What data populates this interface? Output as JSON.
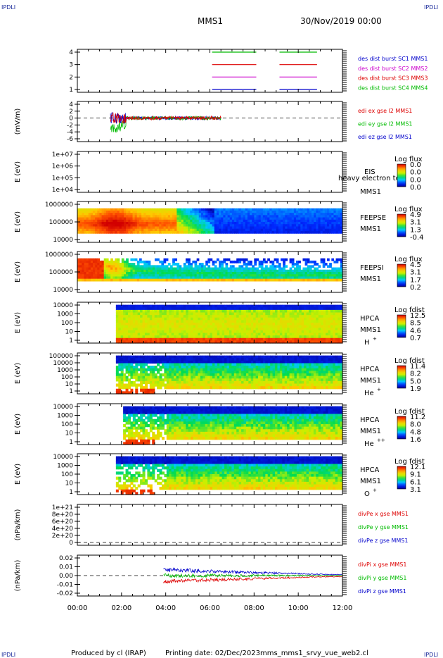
{
  "corner_label": "IPDLI",
  "header": {
    "spacecraft": "MMS1",
    "date": "30/Nov/2019 00:00"
  },
  "footer": {
    "produced_by": "Produced by cl (IRAP)",
    "printing_date": "Printing date: 02/Dec/2023",
    "filename": "mms_mms1_srvy_vue_web2.cl"
  },
  "x_axis": {
    "ticks": [
      "00:00",
      "02:00",
      "04:00",
      "06:00",
      "08:00",
      "10:00",
      "12:00"
    ],
    "range_hours": [
      0,
      12
    ]
  },
  "panels": [
    {
      "id": "burst",
      "yticks": [
        "4",
        "3",
        "2",
        "1"
      ],
      "legend": [
        {
          "text": "des dist burst SC1 MMS1",
          "color": "#0000cc"
        },
        {
          "text": "des dist burst SC2 MMS2",
          "color": "#cc00cc"
        },
        {
          "text": "des dist burst SC3 MMS3",
          "color": "#dd0000"
        },
        {
          "text": "des dist burst SC4 MMS4",
          "color": "#00bb00"
        }
      ]
    },
    {
      "id": "edi",
      "ylabel": "(mV/m)",
      "yticks": [
        "4",
        "2",
        "0",
        "-2",
        "-4",
        "-6"
      ],
      "legend": [
        {
          "text": "edi ex gse l2 MMS1",
          "color": "#dd0000"
        },
        {
          "text": "edi ey gse l2 MMS1",
          "color": "#00bb00"
        },
        {
          "text": "edi ez gse l2 MMS1",
          "color": "#0000cc"
        }
      ]
    },
    {
      "id": "eis",
      "ylabel": "E (eV)",
      "yticks": [
        "1e+07",
        "1e+06",
        "1e+05",
        "1e+04"
      ],
      "label1": "EIS",
      "label2": "MMS1",
      "overlay": "heavy electron to",
      "cbar_title": "Log flux",
      "cbar_ticks": [
        "0.0",
        "0.0",
        "0.0",
        "0.0"
      ]
    },
    {
      "id": "feepse",
      "ylabel": "E (eV)",
      "yticks": [
        "1000000",
        "100000",
        "10000"
      ],
      "label1": "FEEPSE",
      "label2": "MMS1",
      "cbar_title": "Log flux",
      "cbar_ticks": [
        "4.9",
        "3.1",
        "1.3",
        "-0.4"
      ]
    },
    {
      "id": "feepsi",
      "ylabel": "E (eV)",
      "yticks": [
        "1000000",
        "100000",
        "10000"
      ],
      "label1": "FEEPSI",
      "label2": "MMS1",
      "cbar_title": "Log flux",
      "cbar_ticks": [
        "4.5",
        "3.1",
        "1.7",
        "0.2"
      ]
    },
    {
      "id": "hpca_h",
      "ylabel": "E (eV)",
      "yticks": [
        "10000",
        "1000",
        "100",
        "10",
        "1"
      ],
      "label1": "HPCA",
      "label2": "MMS1",
      "species": "H",
      "species_sup": "+",
      "cbar_title": "Log fdist",
      "cbar_ticks": [
        "12.5",
        "8.5",
        "4.6",
        "0.7"
      ]
    },
    {
      "id": "hpca_he1",
      "ylabel": "E (eV)",
      "yticks": [
        "100000",
        "10000",
        "1000",
        "100",
        "10",
        "1"
      ],
      "label1": "HPCA",
      "label2": "MMS1",
      "species": "He",
      "species_sup": "+",
      "cbar_title": "Log fdist",
      "cbar_ticks": [
        "11.4",
        "8.2",
        "5.0",
        "1.9"
      ]
    },
    {
      "id": "hpca_he2",
      "ylabel": "E (eV)",
      "yticks": [
        "10000",
        "1000",
        "100",
        "10",
        "1"
      ],
      "label1": "HPCA",
      "label2": "MMS1",
      "species": "He",
      "species_sup": "++",
      "cbar_title": "Log fdist",
      "cbar_ticks": [
        "11.2",
        "8.0",
        "4.8",
        "1.6"
      ]
    },
    {
      "id": "hpca_o",
      "ylabel": "E (eV)",
      "yticks": [
        "10000",
        "1000",
        "100",
        "10",
        "1"
      ],
      "label1": "HPCA",
      "label2": "MMS1",
      "species": "O",
      "species_sup": "+",
      "cbar_title": "Log fdist",
      "cbar_ticks": [
        "12.1",
        "9.1",
        "6.1",
        "3.1"
      ]
    },
    {
      "id": "divpe",
      "ylabel": "(nPa/km)",
      "yticks": [
        "1e+21",
        "8e+20",
        "6e+20",
        "4e+20",
        "2e+20",
        "0"
      ],
      "legend": [
        {
          "text": "divPe x gse MMS1",
          "color": "#dd0000"
        },
        {
          "text": "divPe y gse MMS1",
          "color": "#00bb00"
        },
        {
          "text": "divPe z gse MMS1",
          "color": "#0000cc"
        }
      ]
    },
    {
      "id": "divpi",
      "ylabel": "(nPa/km)",
      "yticks": [
        "0.02",
        "0.01",
        "0.00",
        "-0.01",
        "-0.02"
      ],
      "legend": [
        {
          "text": "divPi x gse MMS1",
          "color": "#dd0000"
        },
        {
          "text": "divPi y gse MMS1",
          "color": "#00bb00"
        },
        {
          "text": "divPi z gse MMS1",
          "color": "#0000cc"
        }
      ]
    }
  ],
  "chart_data": {
    "type": "line",
    "x_unit": "UT hours",
    "burst_intervals": [
      {
        "series": "des dist burst SC1 MMS1",
        "y": 1,
        "x": [
          [
            6.1,
            8.1
          ],
          [
            9.15,
            10.85
          ]
        ]
      },
      {
        "series": "des dist burst SC2 MMS2",
        "y": 2,
        "x": [
          [
            6.1,
            8.1
          ],
          [
            9.15,
            10.85
          ]
        ]
      },
      {
        "series": "des dist burst SC3 MMS3",
        "y": 3,
        "x": [
          [
            6.1,
            8.1
          ],
          [
            9.15,
            10.85
          ]
        ]
      },
      {
        "series": "des dist burst SC4 MMS4",
        "y": 4,
        "x": [
          [
            6.1,
            8.1
          ],
          [
            9.15,
            10.85
          ]
        ]
      }
    ],
    "edi_ylim": [
      -7,
      4
    ],
    "edi_data_span_hours": [
      1.5,
      6.5
    ],
    "divpi_ylim": [
      -0.025,
      0.025
    ],
    "divpi_data_span_hours": [
      3.9,
      12.0
    ],
    "hpca_data_start_hours": 1.7
  }
}
